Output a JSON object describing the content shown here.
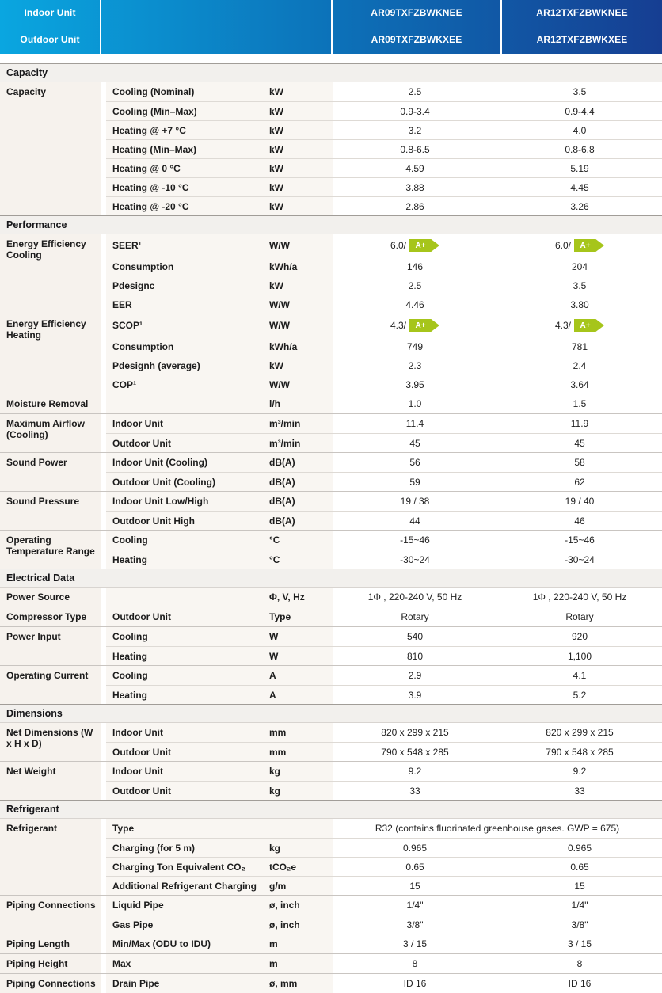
{
  "colors": {
    "header_gradient_left": "#0aa6e0",
    "header_gradient_mid": "#0c72b9",
    "header_gradient_right": "#163e92",
    "badge_green": "#a6c51b",
    "left_column_bg": "#f6f2ed",
    "sublabel_bg": "#f9f6f2",
    "section_header_bg": "#f2f0ed"
  },
  "header": {
    "unit_labels": [
      "Indoor Unit",
      "Outdoor Unit"
    ],
    "model_columns": [
      [
        "AR09TXFZBWKNEE",
        "AR09TXFZBWKXEE"
      ],
      [
        "AR12TXFZBWKNEE",
        "AR12TXFZBWKXEE"
      ]
    ]
  },
  "sections": [
    {
      "title": "Capacity",
      "groups": [
        {
          "category": "Capacity",
          "rows": [
            {
              "label": "Cooling (Nominal)",
              "unit": "kW",
              "values": [
                "2.5",
                "3.5"
              ]
            },
            {
              "label": "Cooling (Min–Max)",
              "unit": "kW",
              "values": [
                "0.9-3.4",
                "0.9-4.4"
              ]
            },
            {
              "label": "Heating @ +7 °C",
              "unit": "kW",
              "values": [
                "3.2",
                "4.0"
              ]
            },
            {
              "label": "Heating (Min–Max)",
              "unit": "kW",
              "values": [
                "0.8-6.5",
                "0.8-6.8"
              ]
            },
            {
              "label": "Heating @ 0 °C",
              "unit": "kW",
              "values": [
                "4.59",
                "5.19"
              ]
            },
            {
              "label": "Heating @ -10 °C",
              "unit": "kW",
              "values": [
                "3.88",
                "4.45"
              ]
            },
            {
              "label": "Heating @ -20 °C",
              "unit": "kW",
              "values": [
                "2.86",
                "3.26"
              ]
            }
          ]
        }
      ]
    },
    {
      "title": "Performance",
      "groups": [
        {
          "category": "Energy Efficiency Cooling",
          "rows": [
            {
              "label": "SEER¹",
              "unit": "W/W",
              "values": [
                {
                  "pre": "6.0/",
                  "badge": "A+"
                },
                {
                  "pre": "6.0/",
                  "badge": "A+"
                }
              ]
            },
            {
              "label": "Consumption",
              "unit": "kWh/a",
              "values": [
                "146",
                "204"
              ]
            },
            {
              "label": "Pdesignc",
              "unit": "kW",
              "values": [
                "2.5",
                "3.5"
              ]
            },
            {
              "label": "EER",
              "unit": "W/W",
              "values": [
                "4.46",
                "3.80"
              ]
            }
          ]
        },
        {
          "category": "Energy Efficiency Heating",
          "rows": [
            {
              "label": "SCOP¹",
              "unit": "W/W",
              "values": [
                {
                  "pre": "4.3/",
                  "badge": "A+"
                },
                {
                  "pre": "4.3/",
                  "badge": "A+"
                }
              ]
            },
            {
              "label": "Consumption",
              "unit": "kWh/a",
              "values": [
                "749",
                "781"
              ]
            },
            {
              "label": "Pdesignh (average)",
              "unit": "kW",
              "values": [
                "2.3",
                "2.4"
              ]
            },
            {
              "label": "COP¹",
              "unit": "W/W",
              "values": [
                "3.95",
                "3.64"
              ]
            }
          ]
        },
        {
          "category": "Moisture Removal",
          "rows": [
            {
              "label": "",
              "unit": "l/h",
              "values": [
                "1.0",
                "1.5"
              ]
            }
          ]
        },
        {
          "category": "Maximum Airflow (Cooling)",
          "rows": [
            {
              "label": "Indoor Unit",
              "unit": "m³/min",
              "values": [
                "11.4",
                "11.9"
              ]
            },
            {
              "label": "Outdoor Unit",
              "unit": "m³/min",
              "values": [
                "45",
                "45"
              ]
            }
          ]
        },
        {
          "category": "Sound Power",
          "rows": [
            {
              "label": "Indoor Unit (Cooling)",
              "unit": "dB(A)",
              "values": [
                "56",
                "58"
              ]
            },
            {
              "label": "Outdoor Unit (Cooling)",
              "unit": "dB(A)",
              "values": [
                "59",
                "62"
              ]
            }
          ]
        },
        {
          "category": "Sound Pressure",
          "rows": [
            {
              "label": "Indoor Unit Low/High",
              "unit": "dB(A)",
              "values": [
                "19 / 38",
                "19 / 40"
              ]
            },
            {
              "label": "Outdoor Unit High",
              "unit": "dB(A)",
              "values": [
                "44",
                "46"
              ]
            }
          ]
        },
        {
          "category": "Operating Temperature Range",
          "rows": [
            {
              "label": "Cooling",
              "unit": "°C",
              "values": [
                "-15~46",
                "-15~46"
              ]
            },
            {
              "label": "Heating",
              "unit": "°C",
              "values": [
                "-30~24",
                "-30~24"
              ]
            }
          ]
        }
      ]
    },
    {
      "title": "Electrical Data",
      "groups": [
        {
          "category": "Power Source",
          "rows": [
            {
              "label": "",
              "unit": "Φ, V, Hz",
              "values": [
                "1Φ , 220-240 V, 50 Hz",
                "1Φ , 220-240 V, 50 Hz"
              ]
            }
          ]
        },
        {
          "category": "Compressor Type",
          "rows": [
            {
              "label": "Outdoor Unit",
              "unit": "Type",
              "values": [
                "Rotary",
                "Rotary"
              ]
            }
          ]
        },
        {
          "category": "Power Input",
          "rows": [
            {
              "label": "Cooling",
              "unit": "W",
              "values": [
                "540",
                "920"
              ]
            },
            {
              "label": "Heating",
              "unit": "W",
              "values": [
                "810",
                "1,100"
              ]
            }
          ]
        },
        {
          "category": "Operating Current",
          "rows": [
            {
              "label": "Cooling",
              "unit": "A",
              "values": [
                "2.9",
                "4.1"
              ]
            },
            {
              "label": "Heating",
              "unit": "A",
              "values": [
                "3.9",
                "5.2"
              ]
            }
          ]
        }
      ]
    },
    {
      "title": "Dimensions",
      "groups": [
        {
          "category": "Net Dimensions (W x H x D)",
          "rows": [
            {
              "label": "Indoor Unit",
              "unit": "mm",
              "values": [
                "820 x 299 x 215",
                "820 x 299 x 215"
              ]
            },
            {
              "label": "Outdoor Unit",
              "unit": "mm",
              "values": [
                "790 x 548 x 285",
                "790 x 548 x 285"
              ]
            }
          ]
        },
        {
          "category": "Net Weight",
          "rows": [
            {
              "label": "Indoor Unit",
              "unit": "kg",
              "values": [
                "9.2",
                "9.2"
              ]
            },
            {
              "label": "Outdoor Unit",
              "unit": "kg",
              "values": [
                "33",
                "33"
              ]
            }
          ]
        }
      ]
    },
    {
      "title": "Refrigerant",
      "groups": [
        {
          "category": "Refrigerant",
          "rows": [
            {
              "label": "Type",
              "unit": "",
              "span_value": "R32 (contains fluorinated greenhouse gases. GWP = 675)"
            },
            {
              "label": "Charging (for 5 m)",
              "unit": "kg",
              "values": [
                "0.965",
                "0.965"
              ]
            },
            {
              "label": "Charging Ton Equivalent CO₂",
              "unit": "tCO₂e",
              "values": [
                "0.65",
                "0.65"
              ]
            },
            {
              "label": "Additional Refrigerant Charging",
              "unit": "g/m",
              "values": [
                "15",
                "15"
              ]
            }
          ]
        },
        {
          "category": "Piping Connections",
          "rows": [
            {
              "label": "Liquid Pipe",
              "unit": "ø, inch",
              "values": [
                "1/4\"",
                "1/4\""
              ]
            },
            {
              "label": "Gas Pipe",
              "unit": "ø, inch",
              "values": [
                "3/8\"",
                "3/8\""
              ]
            }
          ]
        },
        {
          "category": "Piping Length",
          "rows": [
            {
              "label": "Min/Max (ODU to IDU)",
              "unit": "m",
              "values": [
                "3 / 15",
                "3 / 15"
              ]
            }
          ]
        },
        {
          "category": "Piping Height",
          "rows": [
            {
              "label": "Max",
              "unit": "m",
              "values": [
                "8",
                "8"
              ]
            }
          ]
        },
        {
          "category": "Piping Connections",
          "rows": [
            {
              "label": "Drain Pipe",
              "unit": "ø, mm",
              "values": [
                "ID 16",
                "ID 16"
              ]
            }
          ]
        }
      ]
    }
  ]
}
